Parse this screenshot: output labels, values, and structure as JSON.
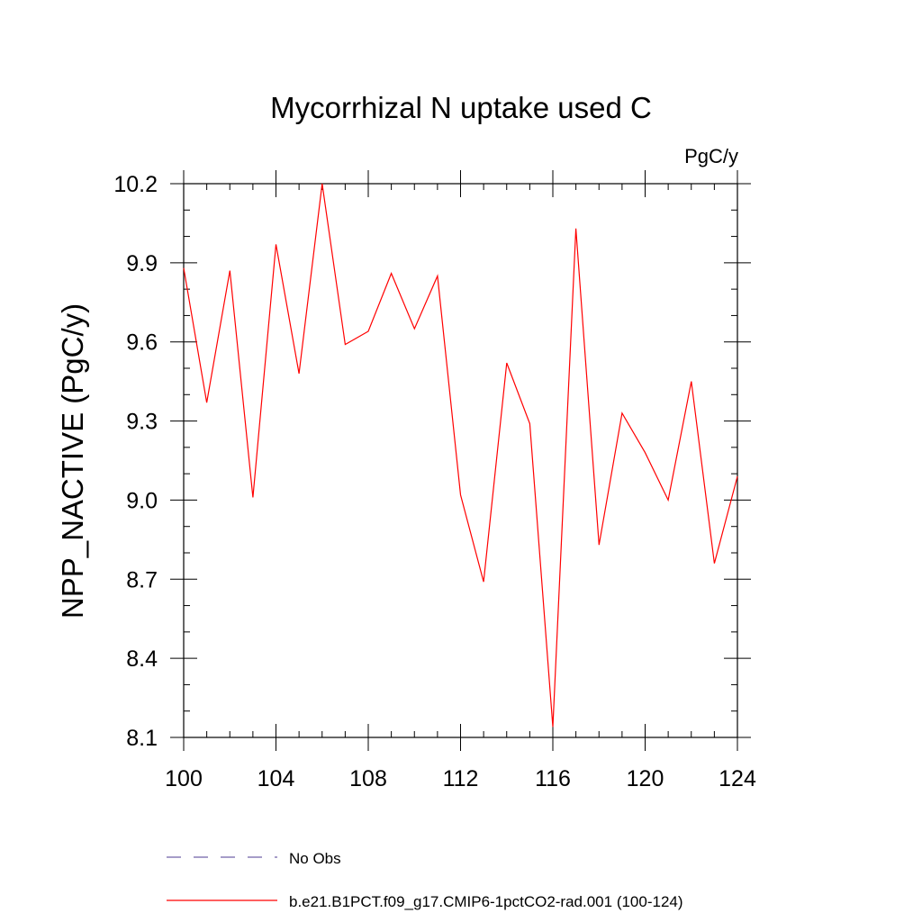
{
  "chart_data": {
    "type": "line",
    "title": "Mycorrhizal N uptake used C",
    "units": "PgC/y",
    "ylabel": "NPP_NACTIVE  (PgC/y)",
    "xlabel": "",
    "xlim": [
      100,
      124
    ],
    "ylim": [
      8.1,
      10.2
    ],
    "x_ticks": [
      100,
      104,
      108,
      112,
      116,
      120,
      124
    ],
    "x_tick_labels": [
      "100",
      "104",
      "108",
      "112",
      "116",
      "120",
      "124"
    ],
    "y_ticks": [
      8.1,
      8.4,
      8.7,
      9.0,
      9.3,
      9.6,
      9.9,
      10.2
    ],
    "y_tick_labels": [
      "8.1",
      "8.4",
      "8.7",
      "9.0",
      "9.3",
      "9.6",
      "9.9",
      "10.2"
    ],
    "grid": false,
    "legend_placement": "bottom",
    "series": [
      {
        "name": "b.e21.B1PCT.f09_g17.CMIP6-1pctCO2-rad.001 (100-124)",
        "color": "#ff0000",
        "style": "solid",
        "x": [
          100,
          101,
          102,
          103,
          104,
          105,
          106,
          107,
          108,
          109,
          110,
          111,
          112,
          113,
          114,
          115,
          116,
          117,
          118,
          119,
          120,
          121,
          122,
          123,
          124
        ],
        "values": [
          9.88,
          9.37,
          9.87,
          9.01,
          9.97,
          9.48,
          10.2,
          9.59,
          9.64,
          9.86,
          9.65,
          9.85,
          9.02,
          8.69,
          9.52,
          9.29,
          8.14,
          10.03,
          8.83,
          9.33,
          9.18,
          9.0,
          9.45,
          8.76,
          9.09
        ]
      }
    ],
    "legend": [
      {
        "label": "No Obs",
        "color": "#7060a8",
        "style": "dashed"
      },
      {
        "label": "b.e21.B1PCT.f09_g17.CMIP6-1pctCO2-rad.001 (100-124)",
        "color": "#ff0000",
        "style": "solid"
      }
    ]
  }
}
